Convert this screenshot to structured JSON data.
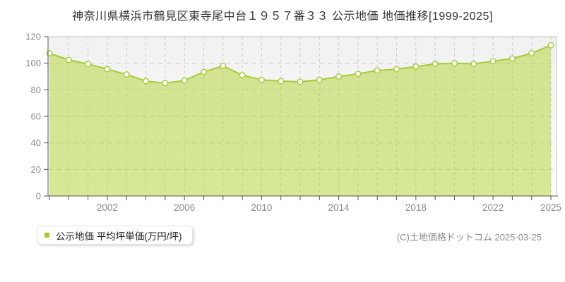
{
  "title": "神奈川県横浜市鶴見区東寺尾中台１９５７番３３ 公示地価 地価推移[1999-2025]",
  "legend": {
    "label": "公示地価 平均坪単価(万円/坪)"
  },
  "copyright": "(C)土地価格ドットコム 2025-03-25",
  "chart_data": {
    "type": "area",
    "title": "神奈川県横浜市鶴見区東寺尾中台１９５７番３３ 公示地価 地価推移[1999-2025]",
    "x": [
      1999,
      2000,
      2001,
      2002,
      2003,
      2004,
      2005,
      2006,
      2007,
      2008,
      2009,
      2010,
      2011,
      2012,
      2013,
      2014,
      2015,
      2016,
      2017,
      2018,
      2019,
      2020,
      2021,
      2022,
      2023,
      2024,
      2025
    ],
    "series": [
      {
        "name": "公示地価 平均坪単価(万円/坪)",
        "values": [
          107.5,
          102.5,
          99.5,
          95.5,
          91.5,
          86.5,
          85,
          87,
          93.5,
          98,
          91,
          87.5,
          86.5,
          86,
          87.5,
          90,
          92,
          94.5,
          95.5,
          97.5,
          99.5,
          100,
          99.5,
          101.5,
          103.5,
          107.5,
          113.5
        ]
      }
    ],
    "xlabel": "",
    "ylabel": "",
    "ylim": [
      0,
      120
    ],
    "ytick_interval": 20,
    "xtick_labels": [
      "2002",
      "2006",
      "2010",
      "2014",
      "2018",
      "2022",
      "2025"
    ],
    "grid": true,
    "legend_position": "bottom-left",
    "colors": {
      "area_fill": "#b6d540",
      "area_opacity": "0.55",
      "line": "#a5cb3a",
      "marker_fill": "#ffffff",
      "marker_stroke": "#a9ce3e",
      "grid": "#cccccc",
      "plot_border": "#c2c2c2",
      "axis": "#555555",
      "tick_label": "#8a8a8a",
      "legend_marker": "#a8c832"
    }
  }
}
